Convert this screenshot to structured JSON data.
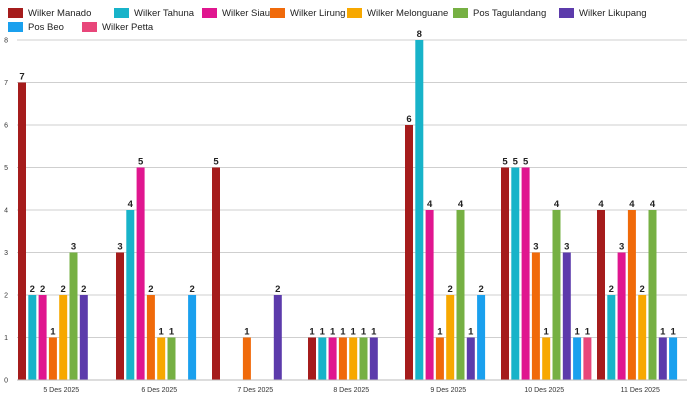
{
  "chart_data": {
    "type": "bar",
    "title": "",
    "xlabel": "",
    "ylabel": "",
    "ylim": [
      0,
      8
    ],
    "yticks": [
      "0",
      "1",
      "2",
      "3",
      "4",
      "5",
      "6",
      "7",
      "8"
    ],
    "grid": true,
    "legend_position": "top-left",
    "categories": [
      "5 Des 2025",
      "6 Des 2025",
      "7 Des 2025",
      "8 Des 2025",
      "9 Des 2025",
      "10 Des 2025",
      "11 Des 2025"
    ],
    "series": [
      {
        "name": "Wilker Manado",
        "color": "#a51c1c",
        "values": [
          7,
          3,
          5,
          1,
          6,
          5,
          4
        ]
      },
      {
        "name": "Wilker Tahuna",
        "color": "#18b3c9",
        "values": [
          2,
          4,
          null,
          1,
          8,
          5,
          2
        ]
      },
      {
        "name": "Wilker Siau",
        "color": "#e0168f",
        "values": [
          2,
          5,
          null,
          1,
          4,
          5,
          3
        ]
      },
      {
        "name": "Wilker Lirung",
        "color": "#f06a0a",
        "values": [
          1,
          2,
          1,
          1,
          1,
          3,
          4
        ]
      },
      {
        "name": "Wilker Melonguane",
        "color": "#f7a800",
        "values": [
          2,
          1,
          null,
          1,
          2,
          1,
          2
        ]
      },
      {
        "name": "Pos Tagulandang",
        "color": "#76b043",
        "values": [
          3,
          1,
          null,
          1,
          4,
          4,
          4
        ]
      },
      {
        "name": "Wilker Likupang",
        "color": "#5c3bab",
        "values": [
          2,
          null,
          2,
          1,
          1,
          3,
          1
        ]
      },
      {
        "name": "Pos Beo",
        "color": "#1aa0ee",
        "values": [
          null,
          2,
          null,
          null,
          2,
          1,
          1
        ]
      },
      {
        "name": "Wilker Petta",
        "color": "#e8467a",
        "values": [
          null,
          null,
          null,
          null,
          null,
          1,
          null
        ]
      }
    ]
  }
}
